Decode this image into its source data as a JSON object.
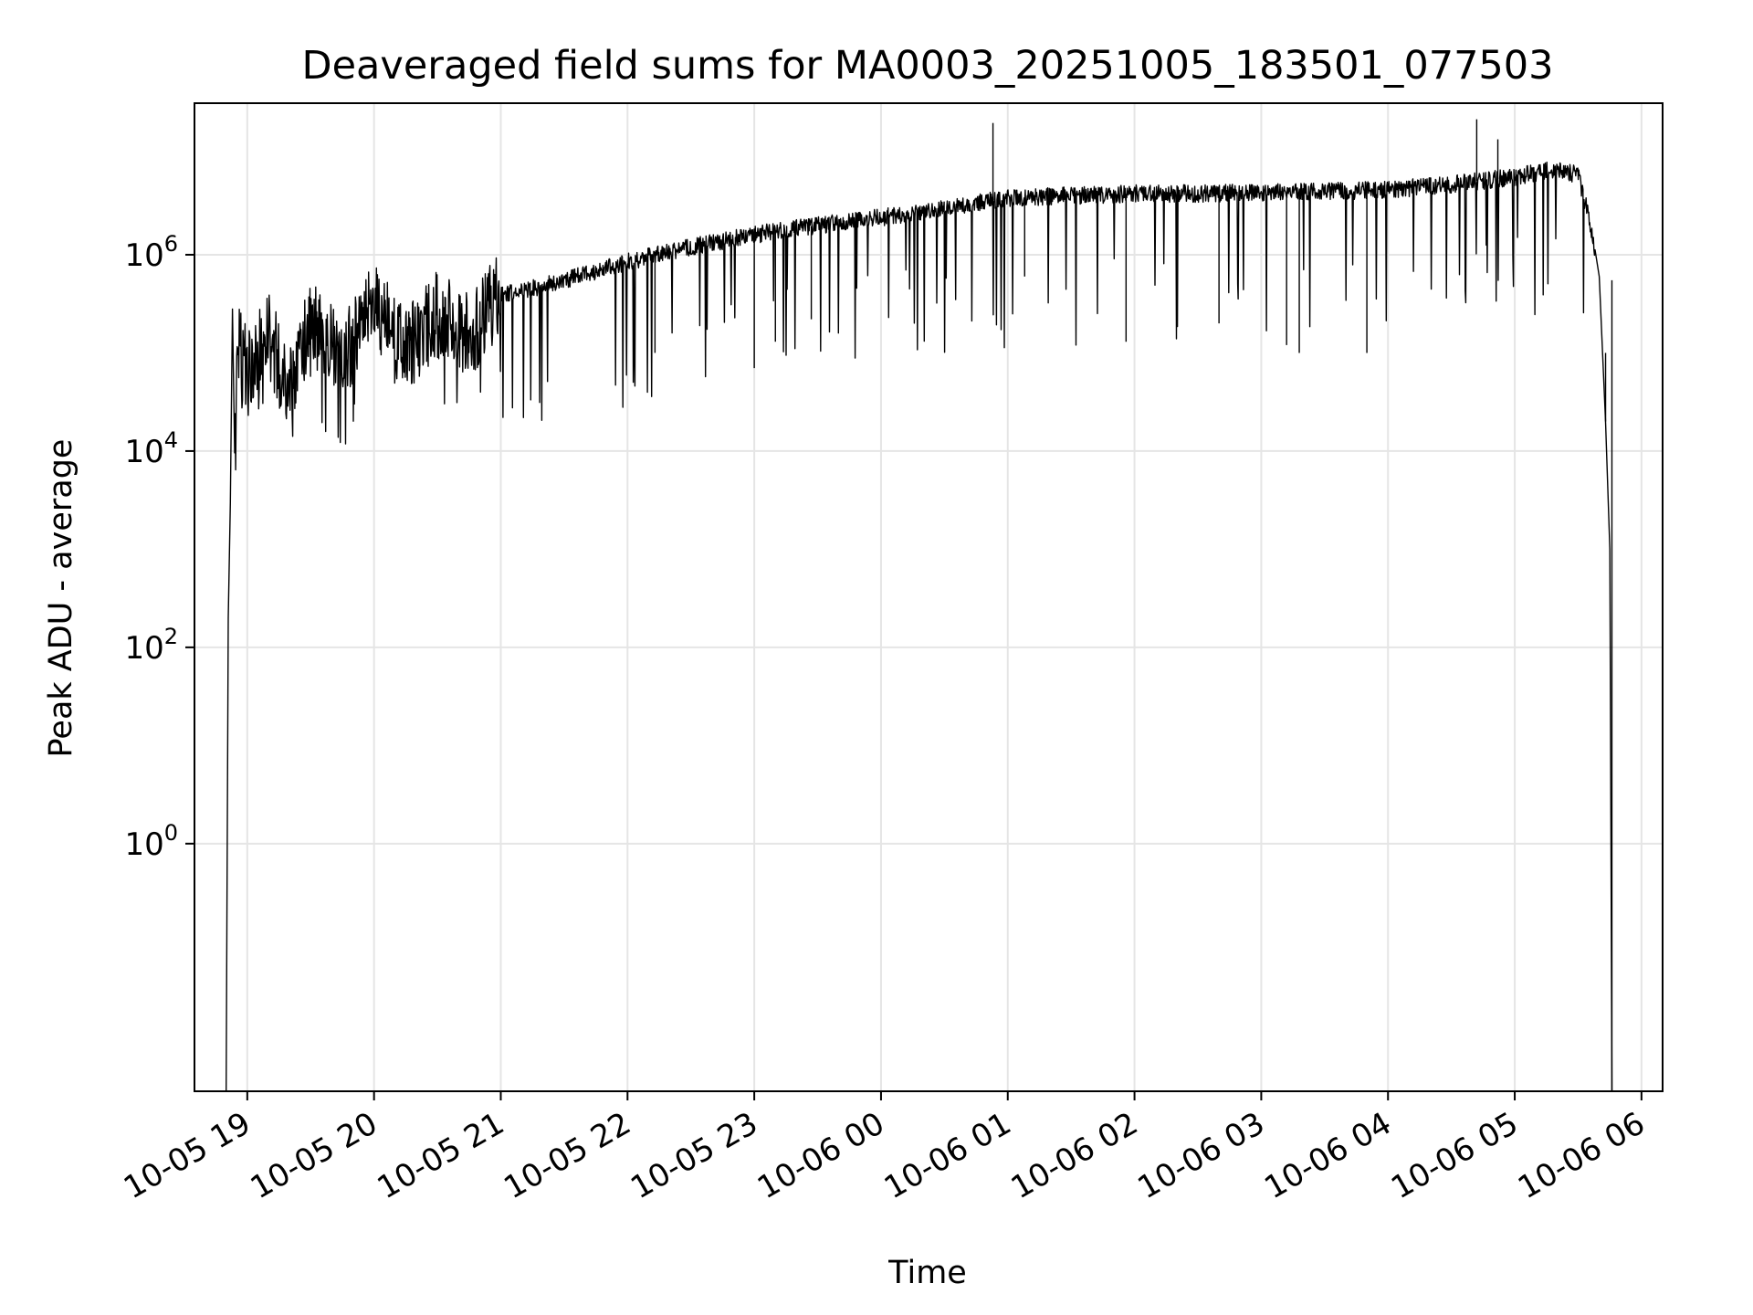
{
  "chart_data": {
    "type": "line",
    "title": "Deaveraged field sums for MA0003_20251005_183501_077503",
    "xlabel": "Time",
    "ylabel": "Peak ADU - average",
    "yscale": "log",
    "ylim": [
      0.003,
      35000000
    ],
    "xlim": [
      "2025-10-05 18:35",
      "2025-10-06 06:10"
    ],
    "grid": true,
    "line_color": "#000000",
    "grid_color": "#e5e5e5",
    "x_ticks": [
      {
        "value": "2025-10-05 19:00",
        "label": "10-05 19"
      },
      {
        "value": "2025-10-05 20:00",
        "label": "10-05 20"
      },
      {
        "value": "2025-10-05 21:00",
        "label": "10-05 21"
      },
      {
        "value": "2025-10-05 22:00",
        "label": "10-05 22"
      },
      {
        "value": "2025-10-05 23:00",
        "label": "10-05 23"
      },
      {
        "value": "2025-10-06 00:00",
        "label": "10-06 00"
      },
      {
        "value": "2025-10-06 01:00",
        "label": "10-06 01"
      },
      {
        "value": "2025-10-06 02:00",
        "label": "10-06 02"
      },
      {
        "value": "2025-10-06 03:00",
        "label": "10-06 03"
      },
      {
        "value": "2025-10-06 04:00",
        "label": "10-06 04"
      },
      {
        "value": "2025-10-06 05:00",
        "label": "10-06 05"
      },
      {
        "value": "2025-10-06 06:00",
        "label": "10-06 06"
      }
    ],
    "y_ticks": [
      {
        "value": 1,
        "base": "10",
        "exp": "0"
      },
      {
        "value": 100,
        "base": "10",
        "exp": "2"
      },
      {
        "value": 10000,
        "base": "10",
        "exp": "4"
      },
      {
        "value": 1000000,
        "base": "10",
        "exp": "6"
      }
    ],
    "series": [
      {
        "values": [
          {
            "t": "2025-10-05 18:50",
            "y": 0.003
          },
          {
            "t": "2025-10-05 18:51",
            "y": 200
          },
          {
            "t": "2025-10-05 18:52",
            "y": 3000
          },
          {
            "t": "2025-10-05 18:53",
            "y": 280000
          },
          {
            "t": "2025-10-05 18:54",
            "y": 16000
          },
          {
            "t": "2025-10-05 18:56",
            "y": 120000
          },
          {
            "t": "2025-10-05 19:00",
            "y": 60000
          },
          {
            "t": "2025-10-05 19:10",
            "y": 150000
          },
          {
            "t": "2025-10-05 19:20",
            "y": 40000
          },
          {
            "t": "2025-10-05 19:30",
            "y": 200000
          },
          {
            "t": "2025-10-05 19:45",
            "y": 80000
          },
          {
            "t": "2025-10-05 20:00",
            "y": 300000
          },
          {
            "t": "2025-10-05 20:15",
            "y": 100000
          },
          {
            "t": "2025-10-05 20:30",
            "y": 250000
          },
          {
            "t": "2025-10-05 20:45",
            "y": 150000
          },
          {
            "t": "2025-10-05 21:00",
            "y": 380000
          },
          {
            "t": "2025-10-05 21:30",
            "y": 550000
          },
          {
            "t": "2025-10-05 22:00",
            "y": 850000
          },
          {
            "t": "2025-10-05 22:30",
            "y": 1200000
          },
          {
            "t": "2025-10-05 23:00",
            "y": 1600000
          },
          {
            "t": "2025-10-05 23:30",
            "y": 2000000
          },
          {
            "t": "2025-10-06 00:00",
            "y": 2400000
          },
          {
            "t": "2025-10-06 00:30",
            "y": 3000000
          },
          {
            "t": "2025-10-06 01:00",
            "y": 3800000
          },
          {
            "t": "2025-10-06 01:30",
            "y": 4000000
          },
          {
            "t": "2025-10-06 02:00",
            "y": 4200000
          },
          {
            "t": "2025-10-06 02:30",
            "y": 4200000
          },
          {
            "t": "2025-10-06 03:00",
            "y": 4300000
          },
          {
            "t": "2025-10-06 03:30",
            "y": 4400000
          },
          {
            "t": "2025-10-06 04:00",
            "y": 4600000
          },
          {
            "t": "2025-10-06 04:30",
            "y": 5200000
          },
          {
            "t": "2025-10-06 05:00",
            "y": 6200000
          },
          {
            "t": "2025-10-06 05:20",
            "y": 7500000
          },
          {
            "t": "2025-10-06 05:30",
            "y": 6500000
          },
          {
            "t": "2025-10-06 05:35",
            "y": 2500000
          },
          {
            "t": "2025-10-06 05:40",
            "y": 600000
          },
          {
            "t": "2025-10-06 05:43",
            "y": 20000
          },
          {
            "t": "2025-10-06 05:45",
            "y": 1000
          },
          {
            "t": "2025-10-06 05:46",
            "y": 0.003
          }
        ],
        "spikes": [
          {
            "t": "2025-10-05 22:13",
            "y": 100000
          },
          {
            "t": "2025-10-05 23:00",
            "y": 70000
          },
          {
            "t": "2025-10-05 23:10",
            "y": 130000
          },
          {
            "t": "2025-10-05 23:27",
            "y": 220000
          },
          {
            "t": "2025-10-06 00:53",
            "y": 22000000
          },
          {
            "t": "2025-10-06 01:08",
            "y": 600000
          },
          {
            "t": "2025-10-06 01:56",
            "y": 130000
          },
          {
            "t": "2025-10-06 02:40",
            "y": 200000
          },
          {
            "t": "2025-10-06 03:12",
            "y": 120000
          },
          {
            "t": "2025-10-06 03:18",
            "y": 100000
          },
          {
            "t": "2025-10-06 03:50",
            "y": 100000
          },
          {
            "t": "2025-10-06 04:42",
            "y": 24000000
          },
          {
            "t": "2025-10-06 04:52",
            "y": 15000000
          },
          {
            "t": "2025-10-06 05:46",
            "y": 550000
          },
          {
            "t": "2025-10-06 05:43",
            "y": 100000
          }
        ]
      }
    ]
  }
}
